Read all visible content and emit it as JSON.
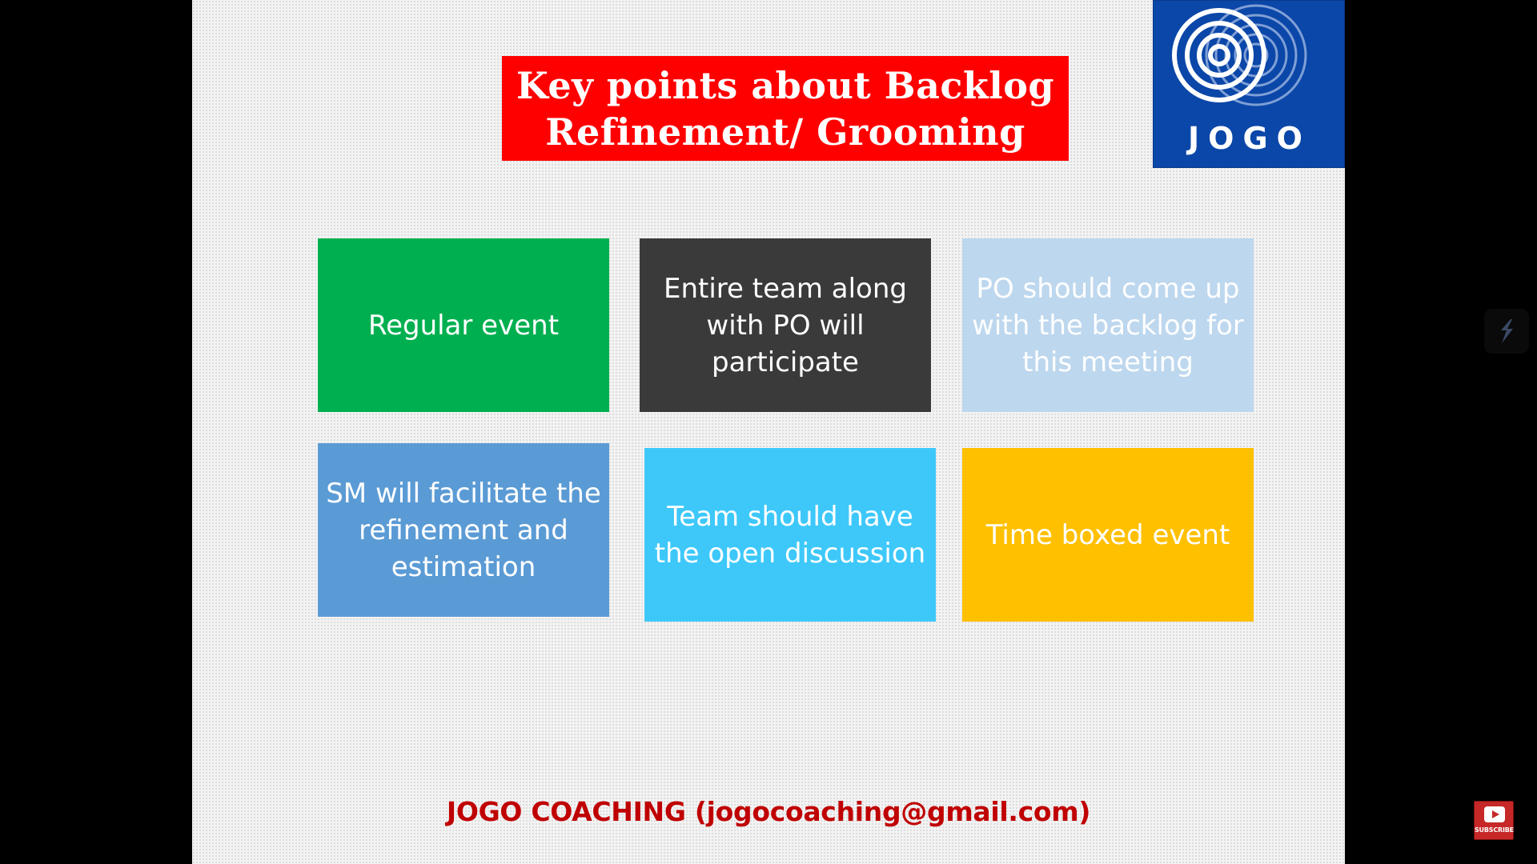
{
  "slide": {
    "title": "Key points about Backlog\nRefinement/ Grooming",
    "title_bg_color": "#ff0000",
    "logo": {
      "text": "JOGO",
      "icon": "concentric-rings-icon",
      "bg_color": "#0b47a8"
    },
    "cards": [
      {
        "text": "Regular event",
        "color": "#00b050"
      },
      {
        "text": "Entire team along with PO will participate",
        "color": "#3a3a3a"
      },
      {
        "text": "PO should come up with the backlog for this meeting",
        "color": "#bdd7ee"
      },
      {
        "text": "SM will facilitate the refinement and estimation",
        "color": "#5b9bd5"
      },
      {
        "text": "Team should have the open discussion",
        "color": "#3ec8fa"
      },
      {
        "text": "Time boxed event",
        "color": "#ffc000"
      }
    ],
    "footer": {
      "text": "JOGO COACHING (jogocoaching@gmail.com)",
      "color": "#c00000"
    }
  },
  "overlay": {
    "side_widget_icon": "lightning-icon",
    "subscribe_label": "SUBSCRIBE",
    "subscribe_icon": "youtube-play-icon"
  }
}
